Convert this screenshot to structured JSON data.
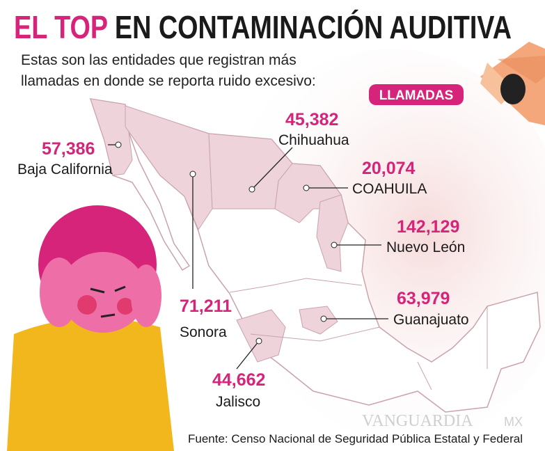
{
  "header": {
    "title_highlight": "EL TOP",
    "title_rest": "EN CONTAMINACIÓN AUDITIVA",
    "subtitle": [
      "Estas son las entidades que registran más",
      "llamadas en donde se reporta ruido excesivo:"
    ]
  },
  "badge": "LLAMADAS",
  "states": [
    {
      "value": "57,386",
      "name": "Baja California"
    },
    {
      "value": "45,382",
      "name": "Chihuahua"
    },
    {
      "value": "20,074",
      "name": "COAHUILA"
    },
    {
      "value": "142,129",
      "name": "Nuevo León"
    },
    {
      "value": "63,979",
      "name": "Guanajuato"
    },
    {
      "value": "71,211",
      "name": "Sonora"
    },
    {
      "value": "44,662",
      "name": "Jalisco"
    }
  ],
  "source": "Fuente: Censo Nacional de Seguridad Pública Estatal y Federal",
  "watermark": {
    "brand": "VANGUARDIA",
    "suffix": "MX"
  }
}
